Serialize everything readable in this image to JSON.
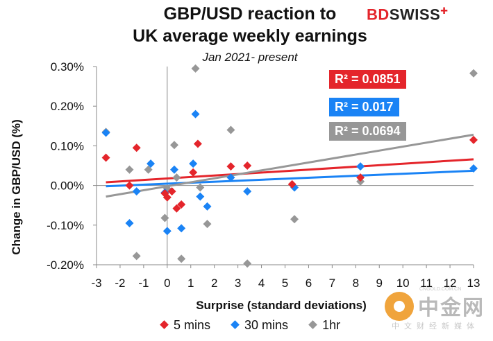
{
  "title_line1": "GBP/USD reaction to",
  "title_line2": "UK average weekly earnings",
  "subtitle": "Jan 2021- present",
  "logo": {
    "part1": "BD",
    "part2": "SWISS",
    "mark": "✚"
  },
  "r2_labels": {
    "five_min": "R² = 0.0851",
    "thirty_min": "R² = 0.017",
    "one_hr": "R² = 0.0694"
  },
  "legend": {
    "five_min": "5 mins",
    "thirty_min": "30 mins",
    "one_hr": "1hr"
  },
  "watermark": {
    "name": "中金网",
    "url": "CNGOLD.COM.CN",
    "sub": "中文财经新媒体"
  },
  "colors": {
    "five_min": "#e4252b",
    "thirty_min": "#1a83f5",
    "one_hr": "#979797"
  },
  "chart_data": {
    "type": "scatter",
    "title": "GBP/USD reaction to UK average weekly earnings",
    "subtitle": "Jan 2021- present",
    "xlabel": "Surprise (standard deviations)",
    "ylabel": "Change in GBP/USD  (%)",
    "xlim": [
      -3,
      13
    ],
    "ylim": [
      -0.2,
      0.3
    ],
    "x_ticks": [
      -3,
      -2,
      -1,
      0,
      1,
      2,
      3,
      4,
      5,
      6,
      7,
      8,
      9,
      10,
      11,
      12,
      13
    ],
    "y_ticks": [
      -0.2,
      -0.1,
      0.0,
      0.1,
      0.2,
      0.3
    ],
    "y_tick_labels": [
      "-0.20%",
      "-0.10%",
      "0.00%",
      "0.10%",
      "0.20%",
      "0.30%"
    ],
    "legend_position": "bottom",
    "grid": false,
    "series": [
      {
        "name": "5 mins",
        "color": "#e4252b",
        "points": [
          [
            -2.6,
            0.07
          ],
          [
            -1.6,
            0.0
          ],
          [
            -1.3,
            0.095
          ],
          [
            -0.1,
            -0.02
          ],
          [
            0.0,
            -0.03
          ],
          [
            0.2,
            -0.015
          ],
          [
            0.4,
            -0.058
          ],
          [
            0.6,
            -0.048
          ],
          [
            1.1,
            0.033
          ],
          [
            1.3,
            0.105
          ],
          [
            2.7,
            0.048
          ],
          [
            3.4,
            0.05
          ],
          [
            5.3,
            0.003
          ],
          [
            8.2,
            0.02
          ],
          [
            13.0,
            0.115
          ]
        ],
        "trendline": {
          "x": [
            -2.6,
            13.0
          ],
          "y": [
            0.008,
            0.066
          ]
        },
        "r2": "R² = 0.0851"
      },
      {
        "name": "30 mins",
        "color": "#1a83f5",
        "points": [
          [
            -2.6,
            0.133
          ],
          [
            -1.6,
            -0.095
          ],
          [
            -1.3,
            -0.015
          ],
          [
            -0.7,
            0.055
          ],
          [
            -0.1,
            -0.018
          ],
          [
            0.0,
            -0.115
          ],
          [
            0.3,
            0.04
          ],
          [
            0.6,
            -0.108
          ],
          [
            1.1,
            0.055
          ],
          [
            1.2,
            0.18
          ],
          [
            1.4,
            -0.028
          ],
          [
            1.7,
            -0.053
          ],
          [
            2.7,
            0.02
          ],
          [
            3.4,
            -0.015
          ],
          [
            5.4,
            -0.005
          ],
          [
            8.2,
            0.048
          ],
          [
            13.0,
            0.043
          ]
        ],
        "trendline": {
          "x": [
            -2.6,
            13.0
          ],
          "y": [
            -0.002,
            0.037
          ]
        },
        "r2": "R² = 0.017"
      },
      {
        "name": "1hr",
        "color": "#979797",
        "points": [
          [
            -2.6,
            0.135
          ],
          [
            -1.6,
            0.04
          ],
          [
            -1.3,
            -0.178
          ],
          [
            -0.8,
            0.04
          ],
          [
            -0.1,
            -0.082
          ],
          [
            0.0,
            -0.008
          ],
          [
            0.3,
            0.102
          ],
          [
            0.4,
            0.02
          ],
          [
            0.6,
            -0.185
          ],
          [
            1.2,
            0.295
          ],
          [
            1.4,
            -0.005
          ],
          [
            1.7,
            -0.097
          ],
          [
            2.7,
            0.14
          ],
          [
            3.4,
            -0.197
          ],
          [
            5.4,
            -0.085
          ],
          [
            8.2,
            0.01
          ],
          [
            13.0,
            0.283
          ]
        ],
        "trendline": {
          "x": [
            -2.6,
            13.0
          ],
          "y": [
            -0.028,
            0.128
          ]
        },
        "r2": "R² = 0.0694"
      }
    ]
  }
}
